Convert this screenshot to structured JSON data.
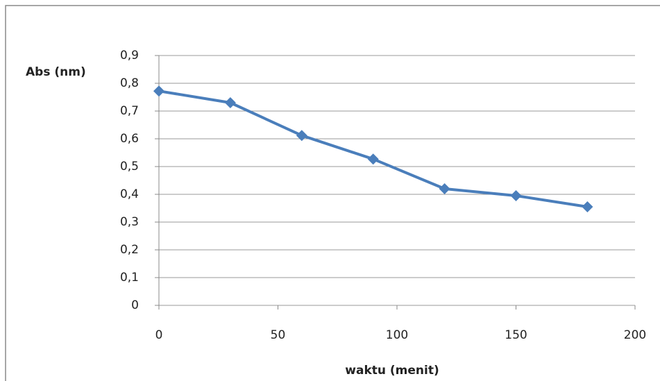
{
  "chart_data": {
    "type": "line",
    "ylabel": "Abs (nm)",
    "xlabel": "waktu (menit)",
    "x": [
      0,
      30,
      60,
      90,
      120,
      150,
      180
    ],
    "values": [
      0.772,
      0.73,
      0.612,
      0.527,
      0.42,
      0.395,
      0.355
    ],
    "color": "#4a7ebb",
    "xlim": [
      0,
      200
    ],
    "xticks": [
      0,
      50,
      100,
      150,
      200
    ],
    "ylim": [
      0,
      0.9
    ],
    "yticks": [
      0,
      {
        "value": 0.1,
        "label": "0,1"
      },
      {
        "value": 0.2,
        "label": "0,2"
      },
      {
        "value": 0.3,
        "label": "0,3"
      },
      {
        "value": 0.4,
        "label": "0,4"
      },
      {
        "value": 0.5,
        "label": "0,5"
      },
      {
        "value": 0.6,
        "label": "0,6"
      },
      {
        "value": 0.7,
        "label": "0,7"
      },
      {
        "value": 0.8,
        "label": "0,8"
      },
      {
        "value": 0.9,
        "label": "0,9"
      }
    ],
    "grid": true
  }
}
